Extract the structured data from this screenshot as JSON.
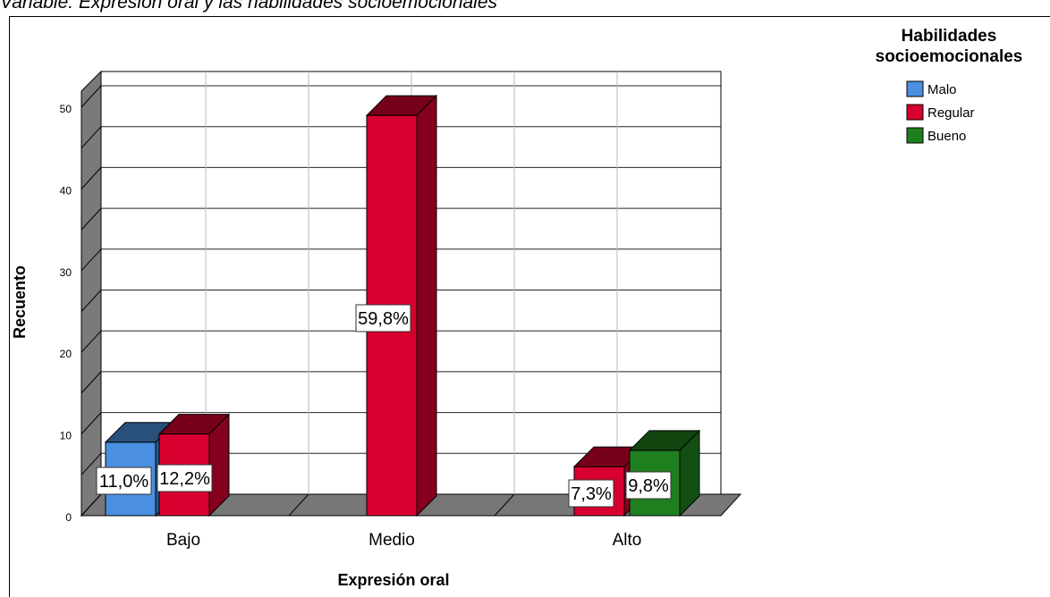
{
  "header": {
    "title": "Variable: Expresión oral y las habilidades socioemocionales"
  },
  "chart_data": {
    "type": "bar",
    "style": "3d-clustered",
    "categories": [
      "Bajo",
      "Medio",
      "Alto"
    ],
    "series": [
      {
        "name": "Malo",
        "color": "#4a8fe0",
        "values": [
          9,
          0,
          0
        ],
        "labels": [
          "11,0%",
          "",
          ""
        ]
      },
      {
        "name": "Regular",
        "color": "#d7002e",
        "values": [
          10,
          49,
          6
        ],
        "labels": [
          "12,2%",
          "59,8%",
          "7,3%"
        ]
      },
      {
        "name": "Bueno",
        "color": "#1f7f1f",
        "values": [
          0,
          0,
          8
        ],
        "labels": [
          "",
          "",
          "9,8%"
        ]
      }
    ],
    "ylim": [
      0,
      50
    ],
    "yticks": [
      0,
      10,
      20,
      30,
      40,
      50
    ],
    "xlabel": "Expresión oral",
    "ylabel": "Recuento",
    "grid": true,
    "legend": {
      "title_lines": [
        "Habilidades",
        "socioemocionales"
      ],
      "placement": "top-right"
    }
  }
}
